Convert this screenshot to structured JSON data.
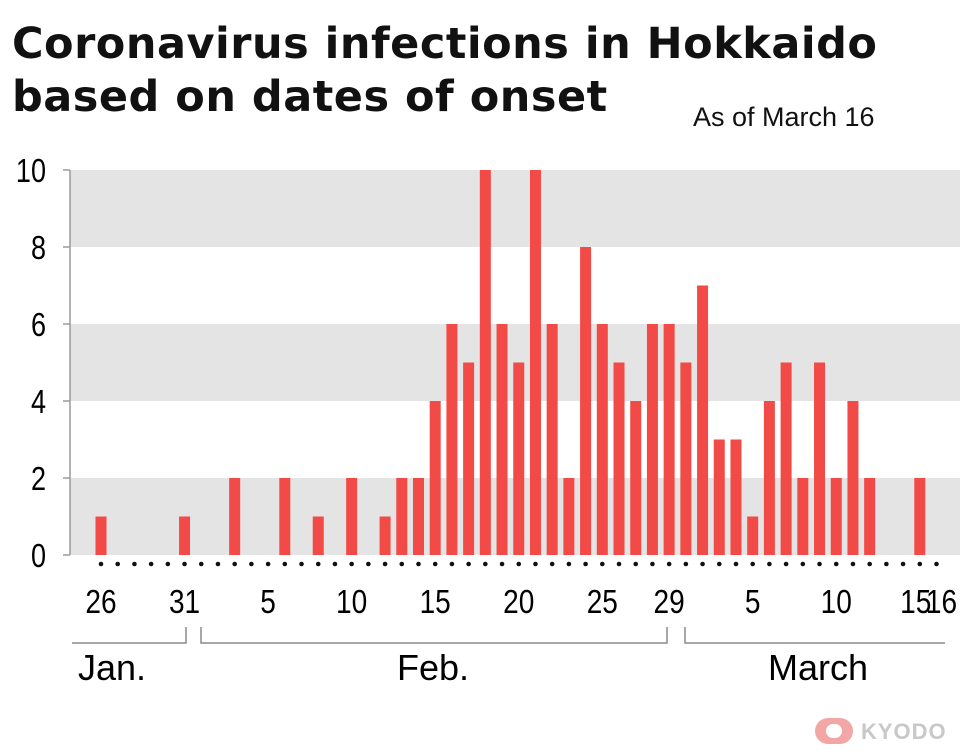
{
  "chart_data": {
    "type": "bar",
    "title": [
      "Coronavirus infections in Hokkaido",
      "based on dates of onset"
    ],
    "subtitle": "As of March 16",
    "ylim": [
      0,
      10
    ],
    "yticks": [
      0,
      2,
      4,
      6,
      8,
      10
    ],
    "grid": "alternating horizontal bands",
    "categories": [
      "Jan 26",
      "Jan 27",
      "Jan 28",
      "Jan 29",
      "Jan 30",
      "Jan 31",
      "Feb 1",
      "Feb 2",
      "Feb 3",
      "Feb 4",
      "Feb 5",
      "Feb 6",
      "Feb 7",
      "Feb 8",
      "Feb 9",
      "Feb 10",
      "Feb 11",
      "Feb 12",
      "Feb 13",
      "Feb 14",
      "Feb 15",
      "Feb 16",
      "Feb 17",
      "Feb 18",
      "Feb 19",
      "Feb 20",
      "Feb 21",
      "Feb 22",
      "Feb 23",
      "Feb 24",
      "Feb 25",
      "Feb 26",
      "Feb 27",
      "Feb 28",
      "Feb 29",
      "Mar 1",
      "Mar 2",
      "Mar 3",
      "Mar 4",
      "Mar 5",
      "Mar 6",
      "Mar 7",
      "Mar 8",
      "Mar 9",
      "Mar 10",
      "Mar 11",
      "Mar 12",
      "Mar 13",
      "Mar 14",
      "Mar 15",
      "Mar 16"
    ],
    "values": [
      1,
      0,
      0,
      0,
      0,
      1,
      0,
      0,
      2,
      0,
      0,
      2,
      0,
      1,
      0,
      2,
      0,
      1,
      2,
      2,
      4,
      6,
      5,
      10,
      6,
      5,
      10,
      6,
      2,
      8,
      6,
      5,
      4,
      6,
      6,
      5,
      7,
      3,
      3,
      1,
      4,
      5,
      2,
      5,
      2,
      4,
      2,
      0,
      0,
      2,
      0
    ],
    "xtick_labels": [
      {
        "label": "26",
        "index": 0
      },
      {
        "label": "31",
        "index": 5
      },
      {
        "label": "5",
        "index": 10
      },
      {
        "label": "10",
        "index": 15
      },
      {
        "label": "15",
        "index": 20
      },
      {
        "label": "20",
        "index": 25
      },
      {
        "label": "25",
        "index": 30
      },
      {
        "label": "29",
        "index": 34
      },
      {
        "label": "5",
        "index": 39
      },
      {
        "label": "10",
        "index": 44
      },
      {
        "label": "15",
        "index": 49
      },
      {
        "label": "16",
        "index": 50
      }
    ],
    "month_groups": [
      {
        "label": "Jan.",
        "start": 0,
        "end": 5
      },
      {
        "label": "Feb.",
        "start": 6,
        "end": 34
      },
      {
        "label": "March",
        "start": 35,
        "end": 50
      }
    ],
    "bar_color": "#f24a46",
    "band_color": "#e4e4e4"
  },
  "logo_text": "KYODO"
}
